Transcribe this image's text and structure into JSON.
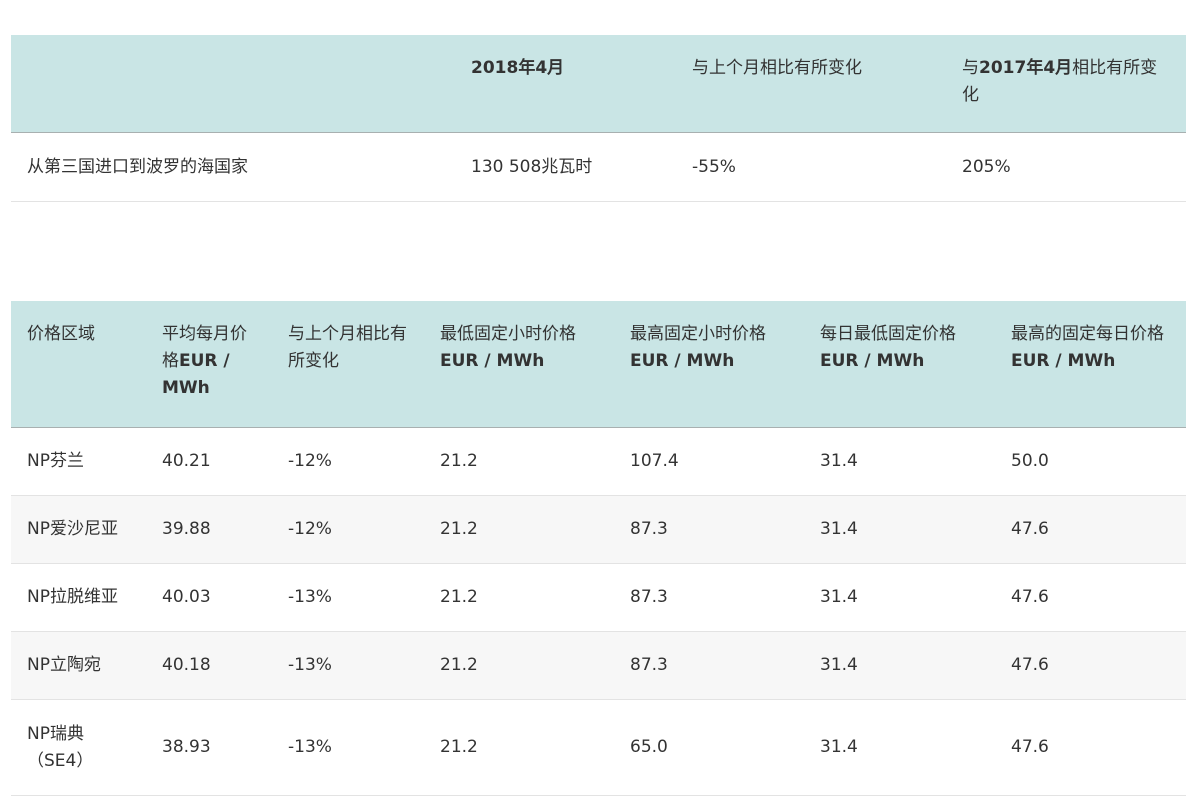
{
  "import_table": {
    "headers": [
      {
        "text": "",
        "bold": ""
      },
      {
        "bold": "2018年4月"
      },
      {
        "text": "与上个月相比有所变化"
      },
      {
        "pre": "与",
        "bold": "2017年4月",
        "post": "相比有所变化"
      }
    ],
    "rows": [
      [
        "从第三国进口到波罗的海国家",
        "130 508兆瓦时",
        "-55%",
        "205%"
      ]
    ]
  },
  "price_table": {
    "headers": [
      {
        "text": "价格区域"
      },
      {
        "text": "平均每月价格",
        "unit": "EUR / MWh"
      },
      {
        "text": "与上个月相比有所变化"
      },
      {
        "text": "最低固定小时价格",
        "unit": "EUR / MWh"
      },
      {
        "text": "最高固定小时价格",
        "unit": "EUR / MWh"
      },
      {
        "text": "每日最低固定价格",
        "unit": "EUR / MWh"
      },
      {
        "text": "最高的固定每日价格",
        "unit": "EUR / MWh"
      }
    ],
    "rows": [
      [
        "NP芬兰",
        "40.21",
        "-12%",
        "21.2",
        "107.4",
        "31.4",
        "50.0"
      ],
      [
        "NP爱沙尼亚",
        "39.88",
        "-12%",
        "21.2",
        "87.3",
        "31.4",
        "47.6"
      ],
      [
        "NP拉脱维亚",
        "40.03",
        "-13%",
        "21.2",
        "87.3",
        "31.4",
        "47.6"
      ],
      [
        "NP立陶宛",
        "40.18",
        "-13%",
        "21.2",
        "87.3",
        "31.4",
        "47.6"
      ],
      [
        "NP瑞典（SE4）",
        "38.93",
        "-13%",
        "21.2",
        "65.0",
        "31.4",
        "47.6"
      ]
    ]
  },
  "colors": {
    "header_bg": "#c9e5e5",
    "alt_row_bg": "#f7f7f7",
    "text": "#333333"
  }
}
